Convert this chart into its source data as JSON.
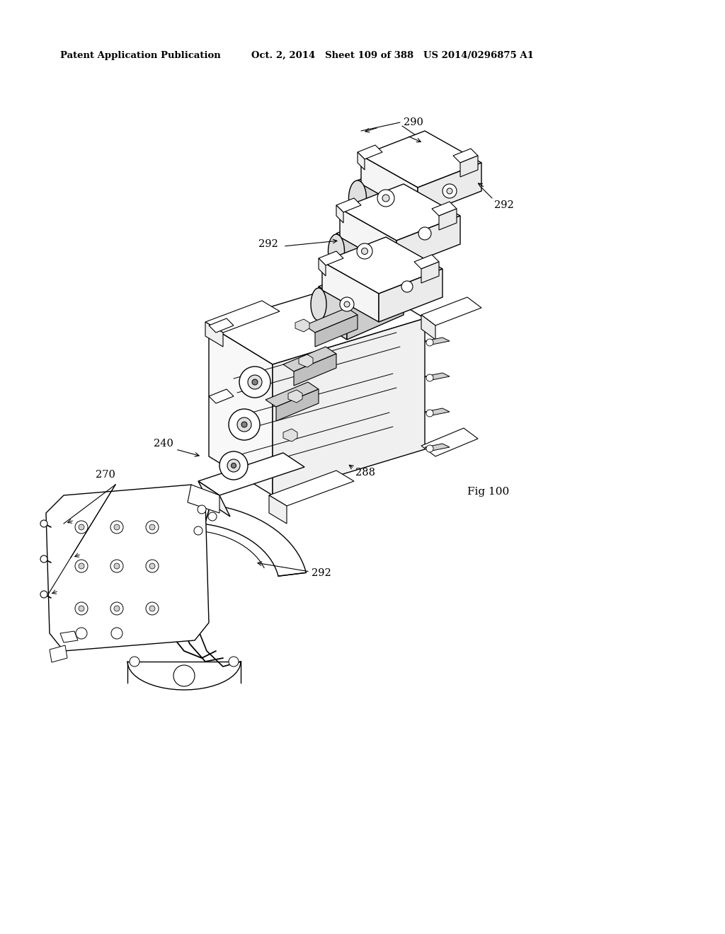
{
  "header_left": "Patent Application Publication",
  "header_middle": "Oct. 2, 2014   Sheet 109 of 388   US 2014/0296875 A1",
  "fig_label": "Fig 100",
  "bg_color": "#ffffff",
  "line_color": "#000000",
  "label_290": "290",
  "label_292a": "292",
  "label_292b": "292",
  "label_292c": "292",
  "label_288": "288",
  "label_240": "240",
  "label_270": "270"
}
